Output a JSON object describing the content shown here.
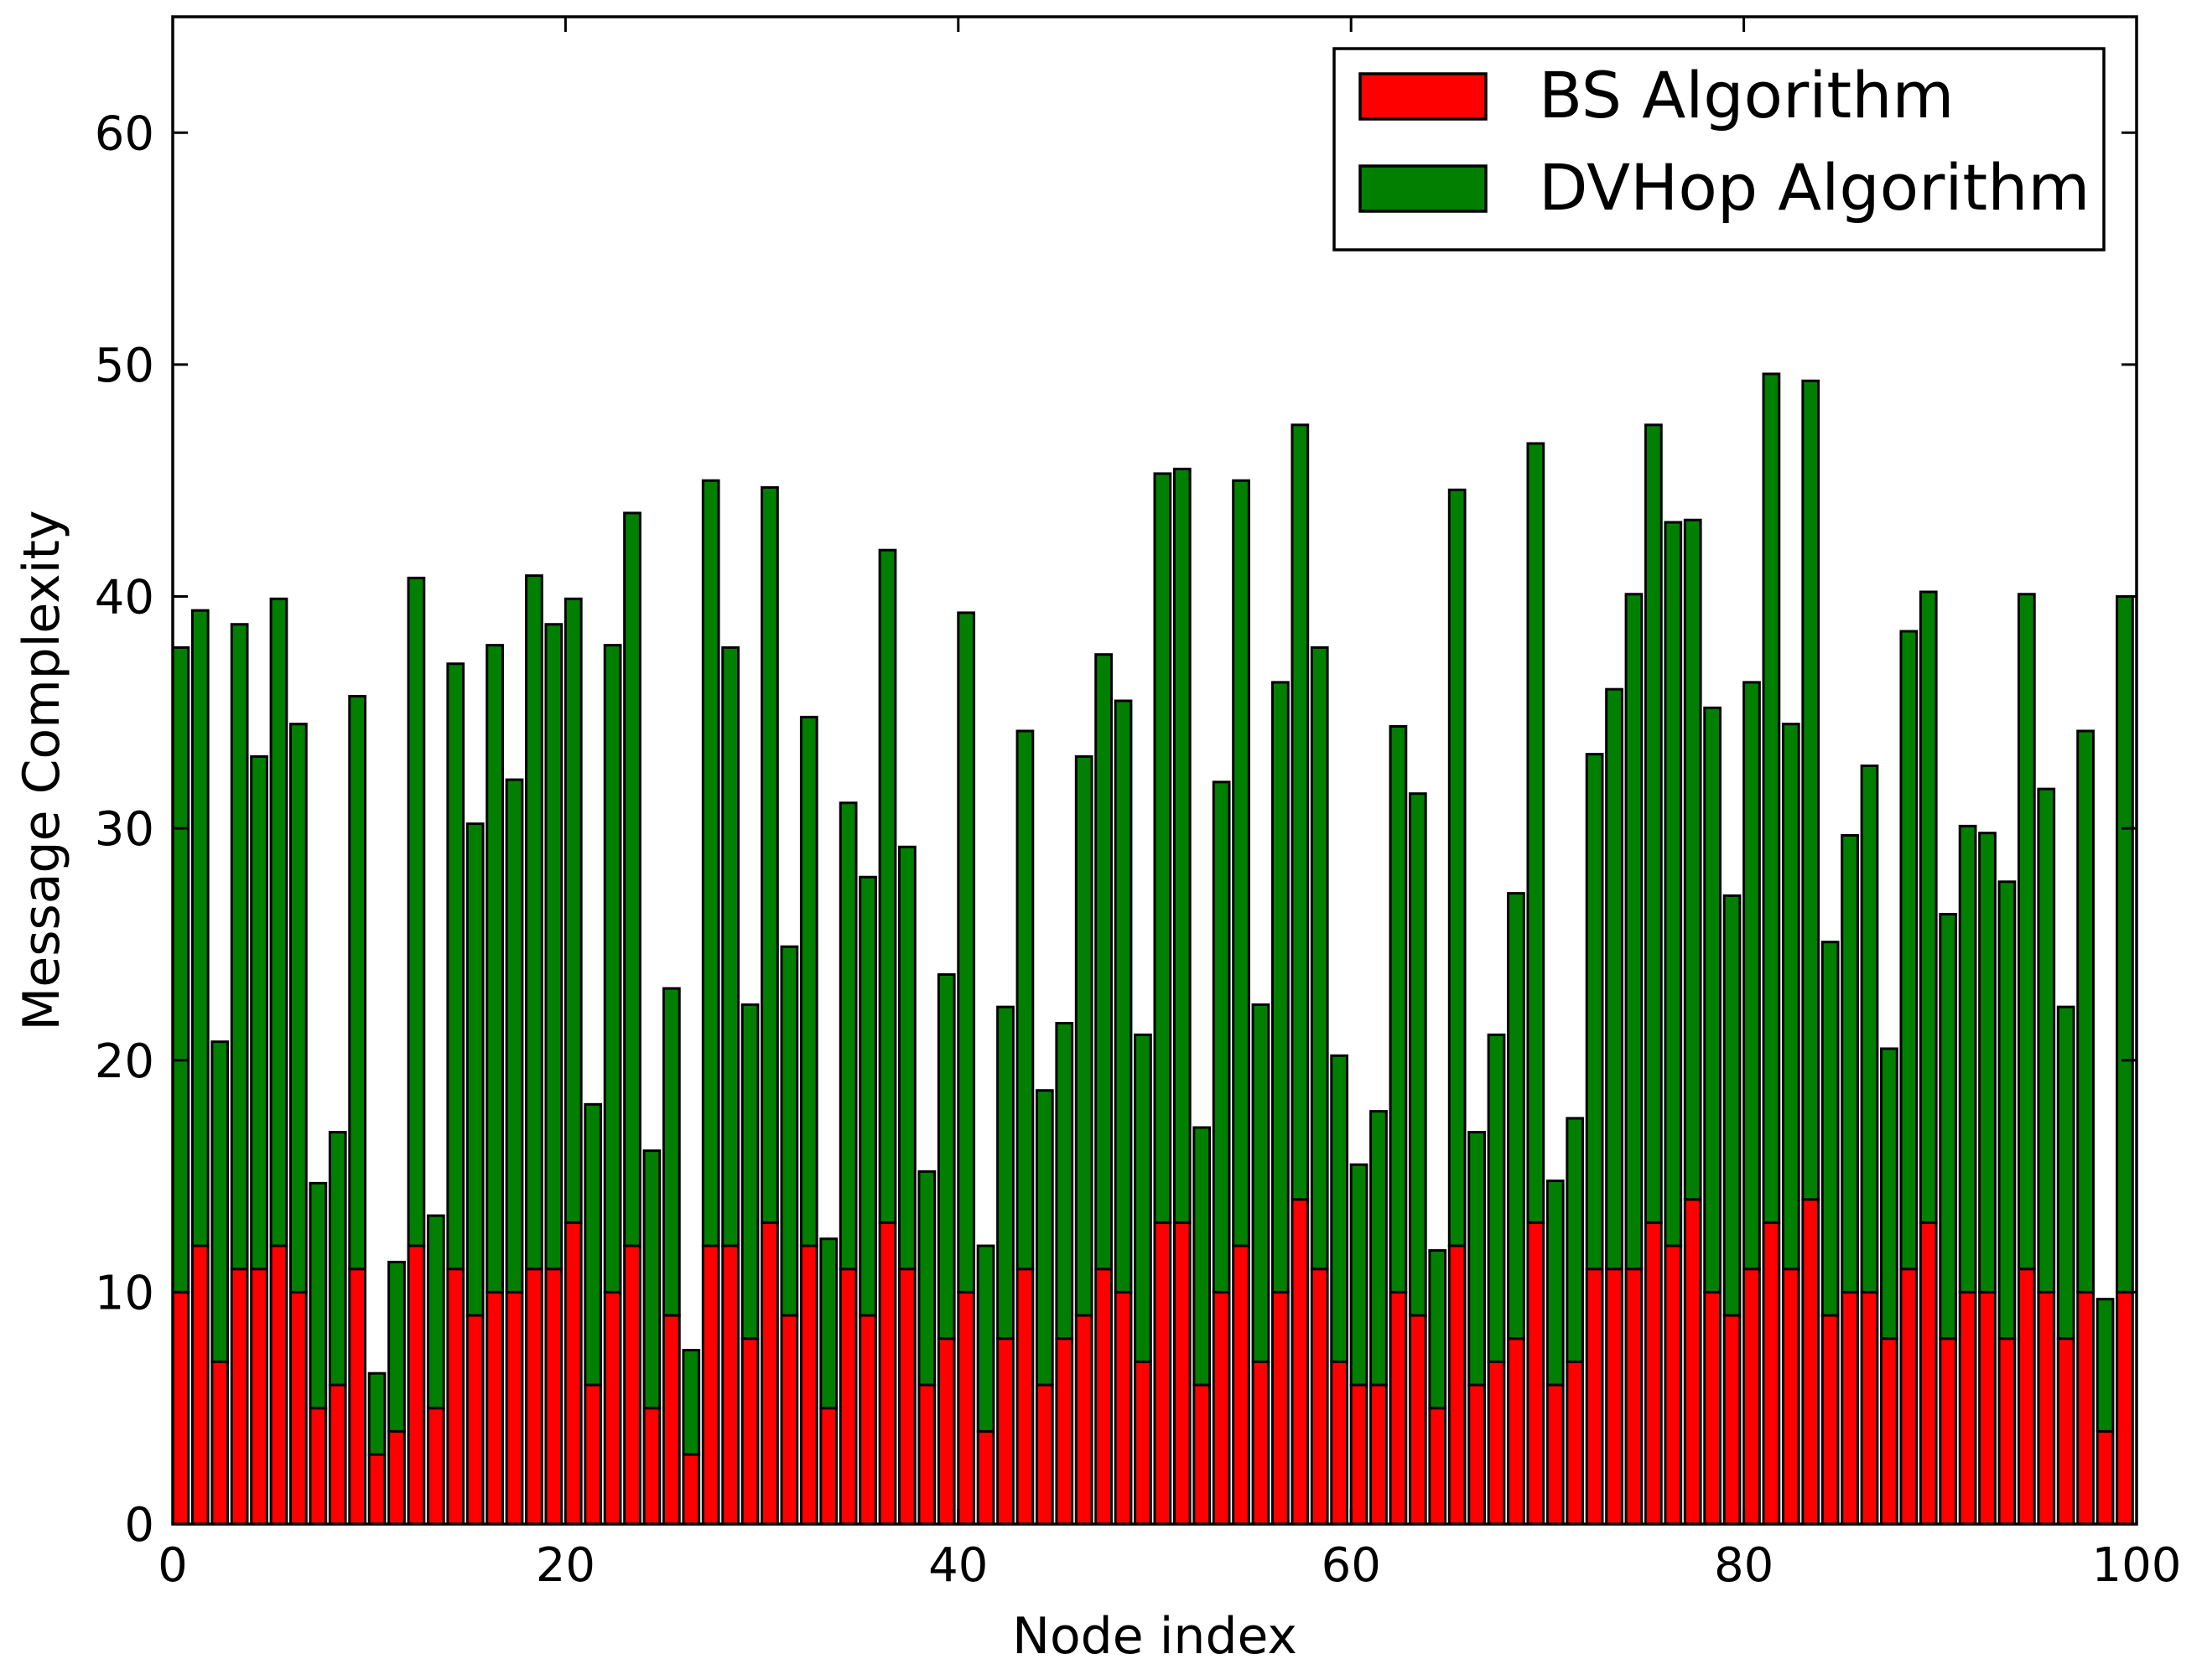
{
  "chart_data": {
    "type": "bar",
    "stacked": true,
    "title": "",
    "xlabel": "Node index",
    "ylabel": "Message Complexity",
    "xlim": [
      0,
      100
    ],
    "ylim": [
      0,
      65
    ],
    "xticks": [
      "0",
      "20",
      "40",
      "60",
      "80",
      "100"
    ],
    "yticks": [
      "0",
      "10",
      "20",
      "30",
      "40",
      "50",
      "60"
    ],
    "grid": false,
    "legend_position": "top-right",
    "x": [
      0,
      1,
      2,
      3,
      4,
      5,
      6,
      7,
      8,
      9,
      10,
      11,
      12,
      13,
      14,
      15,
      16,
      17,
      18,
      19,
      20,
      21,
      22,
      23,
      24,
      25,
      26,
      27,
      28,
      29,
      30,
      31,
      32,
      33,
      34,
      35,
      36,
      37,
      38,
      39,
      40,
      41,
      42,
      43,
      44,
      45,
      46,
      47,
      48,
      49,
      50,
      51,
      52,
      53,
      54,
      55,
      56,
      57,
      58,
      59,
      60,
      61,
      62,
      63,
      64,
      65,
      66,
      67,
      68,
      69,
      70,
      71,
      72,
      73,
      74,
      75,
      76,
      77,
      78,
      79,
      80,
      81,
      82,
      83,
      84,
      85,
      86,
      87,
      88,
      89,
      90,
      91,
      92,
      93,
      94,
      95,
      96,
      97,
      98,
      99
    ],
    "series": [
      {
        "name": "BS Algorithm",
        "color": "#ff0000",
        "values": [
          10,
          12,
          7,
          11,
          11,
          12,
          10,
          5,
          6,
          11,
          3,
          4,
          12,
          5,
          11,
          9,
          10,
          10,
          11,
          11,
          13,
          6,
          10,
          12,
          5,
          9,
          3,
          12,
          12,
          8,
          13,
          9,
          12,
          5,
          11,
          9,
          13,
          11,
          6,
          8,
          10,
          4,
          8,
          11,
          6,
          8,
          9,
          11,
          10,
          7,
          13,
          13,
          6,
          10,
          12,
          7,
          10,
          14,
          11,
          7,
          6,
          6,
          10,
          9,
          5,
          12,
          6,
          7,
          8,
          13,
          6,
          7,
          11,
          11,
          11,
          13,
          12,
          14,
          10,
          9,
          11,
          13,
          11,
          14,
          9,
          10,
          10,
          8,
          11,
          13,
          8,
          10,
          10,
          8,
          11,
          10,
          8,
          10,
          4,
          10
        ]
      },
      {
        "name": "DVHop Algorithm",
        "color": "#007f00",
        "values": [
          27.8,
          27.4,
          13.8,
          27.8,
          22.1,
          27.9,
          24.5,
          9.7,
          10.9,
          24.7,
          3.5,
          7.3,
          28.8,
          8.3,
          26.1,
          21.2,
          27.9,
          22.1,
          29.9,
          27.8,
          26.9,
          12.1,
          27.9,
          31.6,
          11.1,
          14.1,
          4.5,
          33,
          25.8,
          14.4,
          31.7,
          15.9,
          22.8,
          7.3,
          20.1,
          18.9,
          29,
          18.2,
          9.2,
          15.7,
          29.3,
          8,
          14.3,
          23.2,
          12.7,
          13.6,
          24.1,
          26.5,
          25.5,
          14.1,
          32.3,
          32.5,
          11.1,
          22,
          33,
          15.4,
          26.3,
          33.4,
          26.8,
          13.2,
          9.5,
          11.8,
          24.4,
          22.5,
          6.8,
          32.6,
          10.9,
          14.1,
          19.2,
          33.6,
          8.8,
          10.5,
          22.2,
          25,
          29.1,
          34.4,
          31.2,
          29.3,
          25.2,
          18.1,
          25.3,
          36.6,
          23.5,
          35.3,
          16.1,
          19.7,
          22.7,
          12.5,
          27.5,
          27.2,
          18.3,
          20.1,
          19.8,
          19.7,
          29.1,
          21.7,
          14.3,
          24.2,
          5.7,
          30
        ]
      }
    ]
  }
}
